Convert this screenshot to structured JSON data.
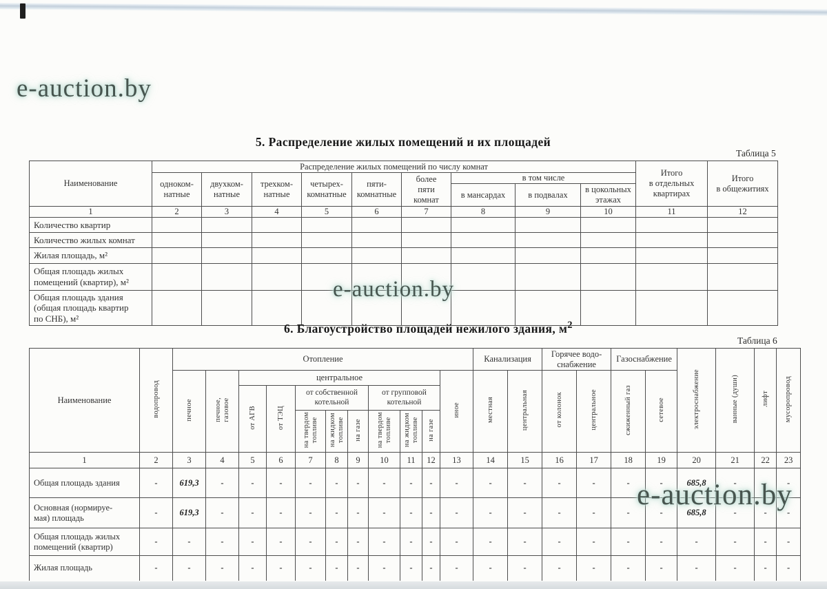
{
  "watermark": {
    "text": "e-auction.by"
  },
  "page": {
    "section5_title": "5. Распределение жилых помещений и их площадей",
    "table5_caption": "Таблица 5",
    "section6_title": "6. Благоустройство площадей нежилого здания, м",
    "section6_title_sup": "2",
    "table6_caption": "Таблица 6"
  },
  "table5": {
    "header": {
      "name_col": "Наименование",
      "group": "Распределение жилых помещений по числу комнат",
      "room_cols": [
        "одноком-\nнатные",
        "двухком-\nнатные",
        "трехком-\nнатные",
        "четырех-\nкомнатные",
        "пяти-\nкомнатные",
        "более\nпяти\nкомнат"
      ],
      "subgroup": "в том числе",
      "sub_cols": [
        "в мансардах",
        "в подвалах",
        "в цокольных\nэтажах"
      ],
      "total_flats": "Итого\nв отдельных\nквартирах",
      "total_dorms": "Итого\nв общежитиях",
      "numbers": [
        "1",
        "2",
        "3",
        "4",
        "5",
        "6",
        "7",
        "8",
        "9",
        "10",
        "11",
        "12"
      ]
    },
    "rows": [
      {
        "label": "Количество квартир"
      },
      {
        "label": "Количество жилых комнат"
      },
      {
        "label": "Жилая площадь, м²"
      },
      {
        "label": "Общая площадь жилых\nпомещений (квартир), м²"
      },
      {
        "label": "Общая площадь здания\n(общая площадь квартир\nпо СНБ), м²"
      }
    ]
  },
  "table6": {
    "header": {
      "name_col": "Наименование",
      "water": "водопровод",
      "heating": "Отопление",
      "stove": "печное",
      "stove_gas": "печное,\nгазовое",
      "central": "центральное",
      "agv": "от АГВ",
      "tpp": "от ТЭЦ",
      "own_boiler": "от собственной\nкотельной",
      "group_boiler": "от групповой\nкотельной",
      "solid_fuel": "на твердом\nтопливе",
      "liquid_fuel": "на жидком\nтопливе",
      "on_gas": "на газе",
      "other": "иное",
      "sewerage": "Канализация",
      "local": "местная",
      "central_f": "центральная",
      "hot_water": "Горячее водо-\nснабжение",
      "from_heaters": "от колонок",
      "hw_central": "центральное",
      "gas_supply": "Газоснабжение",
      "liquefied_gas": "сжиженный  газ",
      "network_gas": "сетевое",
      "electricity": "электроснабжение",
      "baths": "ванные (души)",
      "elevator": "лифт",
      "garbage_chute": "мусоропровод",
      "numbers": [
        "1",
        "2",
        "3",
        "4",
        "5",
        "6",
        "7",
        "8",
        "9",
        "10",
        "11",
        "12",
        "13",
        "14",
        "15",
        "16",
        "17",
        "18",
        "19",
        "20",
        "21",
        "22",
        "23"
      ]
    },
    "rows": [
      {
        "label": "Общая площадь здания",
        "values": [
          "-",
          "619,3",
          "-",
          "-",
          "-",
          "-",
          "-",
          "-",
          "-",
          "-",
          "-",
          "-",
          "-",
          "-",
          "-",
          "-",
          "-",
          "-",
          "685,8",
          "-",
          "-",
          "-"
        ]
      },
      {
        "label": "Основная (нормируе-\nмая) площадь",
        "values": [
          "-",
          "619,3",
          "-",
          "-",
          "-",
          "-",
          "-",
          "-",
          "-",
          "-",
          "-",
          "-",
          "-",
          "-",
          "-",
          "-",
          "-",
          "-",
          "685,8",
          "-",
          "-",
          "-"
        ]
      },
      {
        "label": "Общая площадь жилых\nпомещений (квартир)",
        "values": [
          "-",
          "-",
          "-",
          "-",
          "-",
          "-",
          "-",
          "-",
          "-",
          "-",
          "-",
          "-",
          "-",
          "-",
          "-",
          "-",
          "-",
          "-",
          "-",
          "-",
          "-",
          "-"
        ]
      },
      {
        "label": "Жилая площадь",
        "values": [
          "-",
          "-",
          "-",
          "-",
          "-",
          "-",
          "-",
          "-",
          "-",
          "-",
          "-",
          "-",
          "-",
          "-",
          "-",
          "-",
          "-",
          "-",
          "-",
          "-",
          "-",
          "-"
        ]
      }
    ]
  }
}
